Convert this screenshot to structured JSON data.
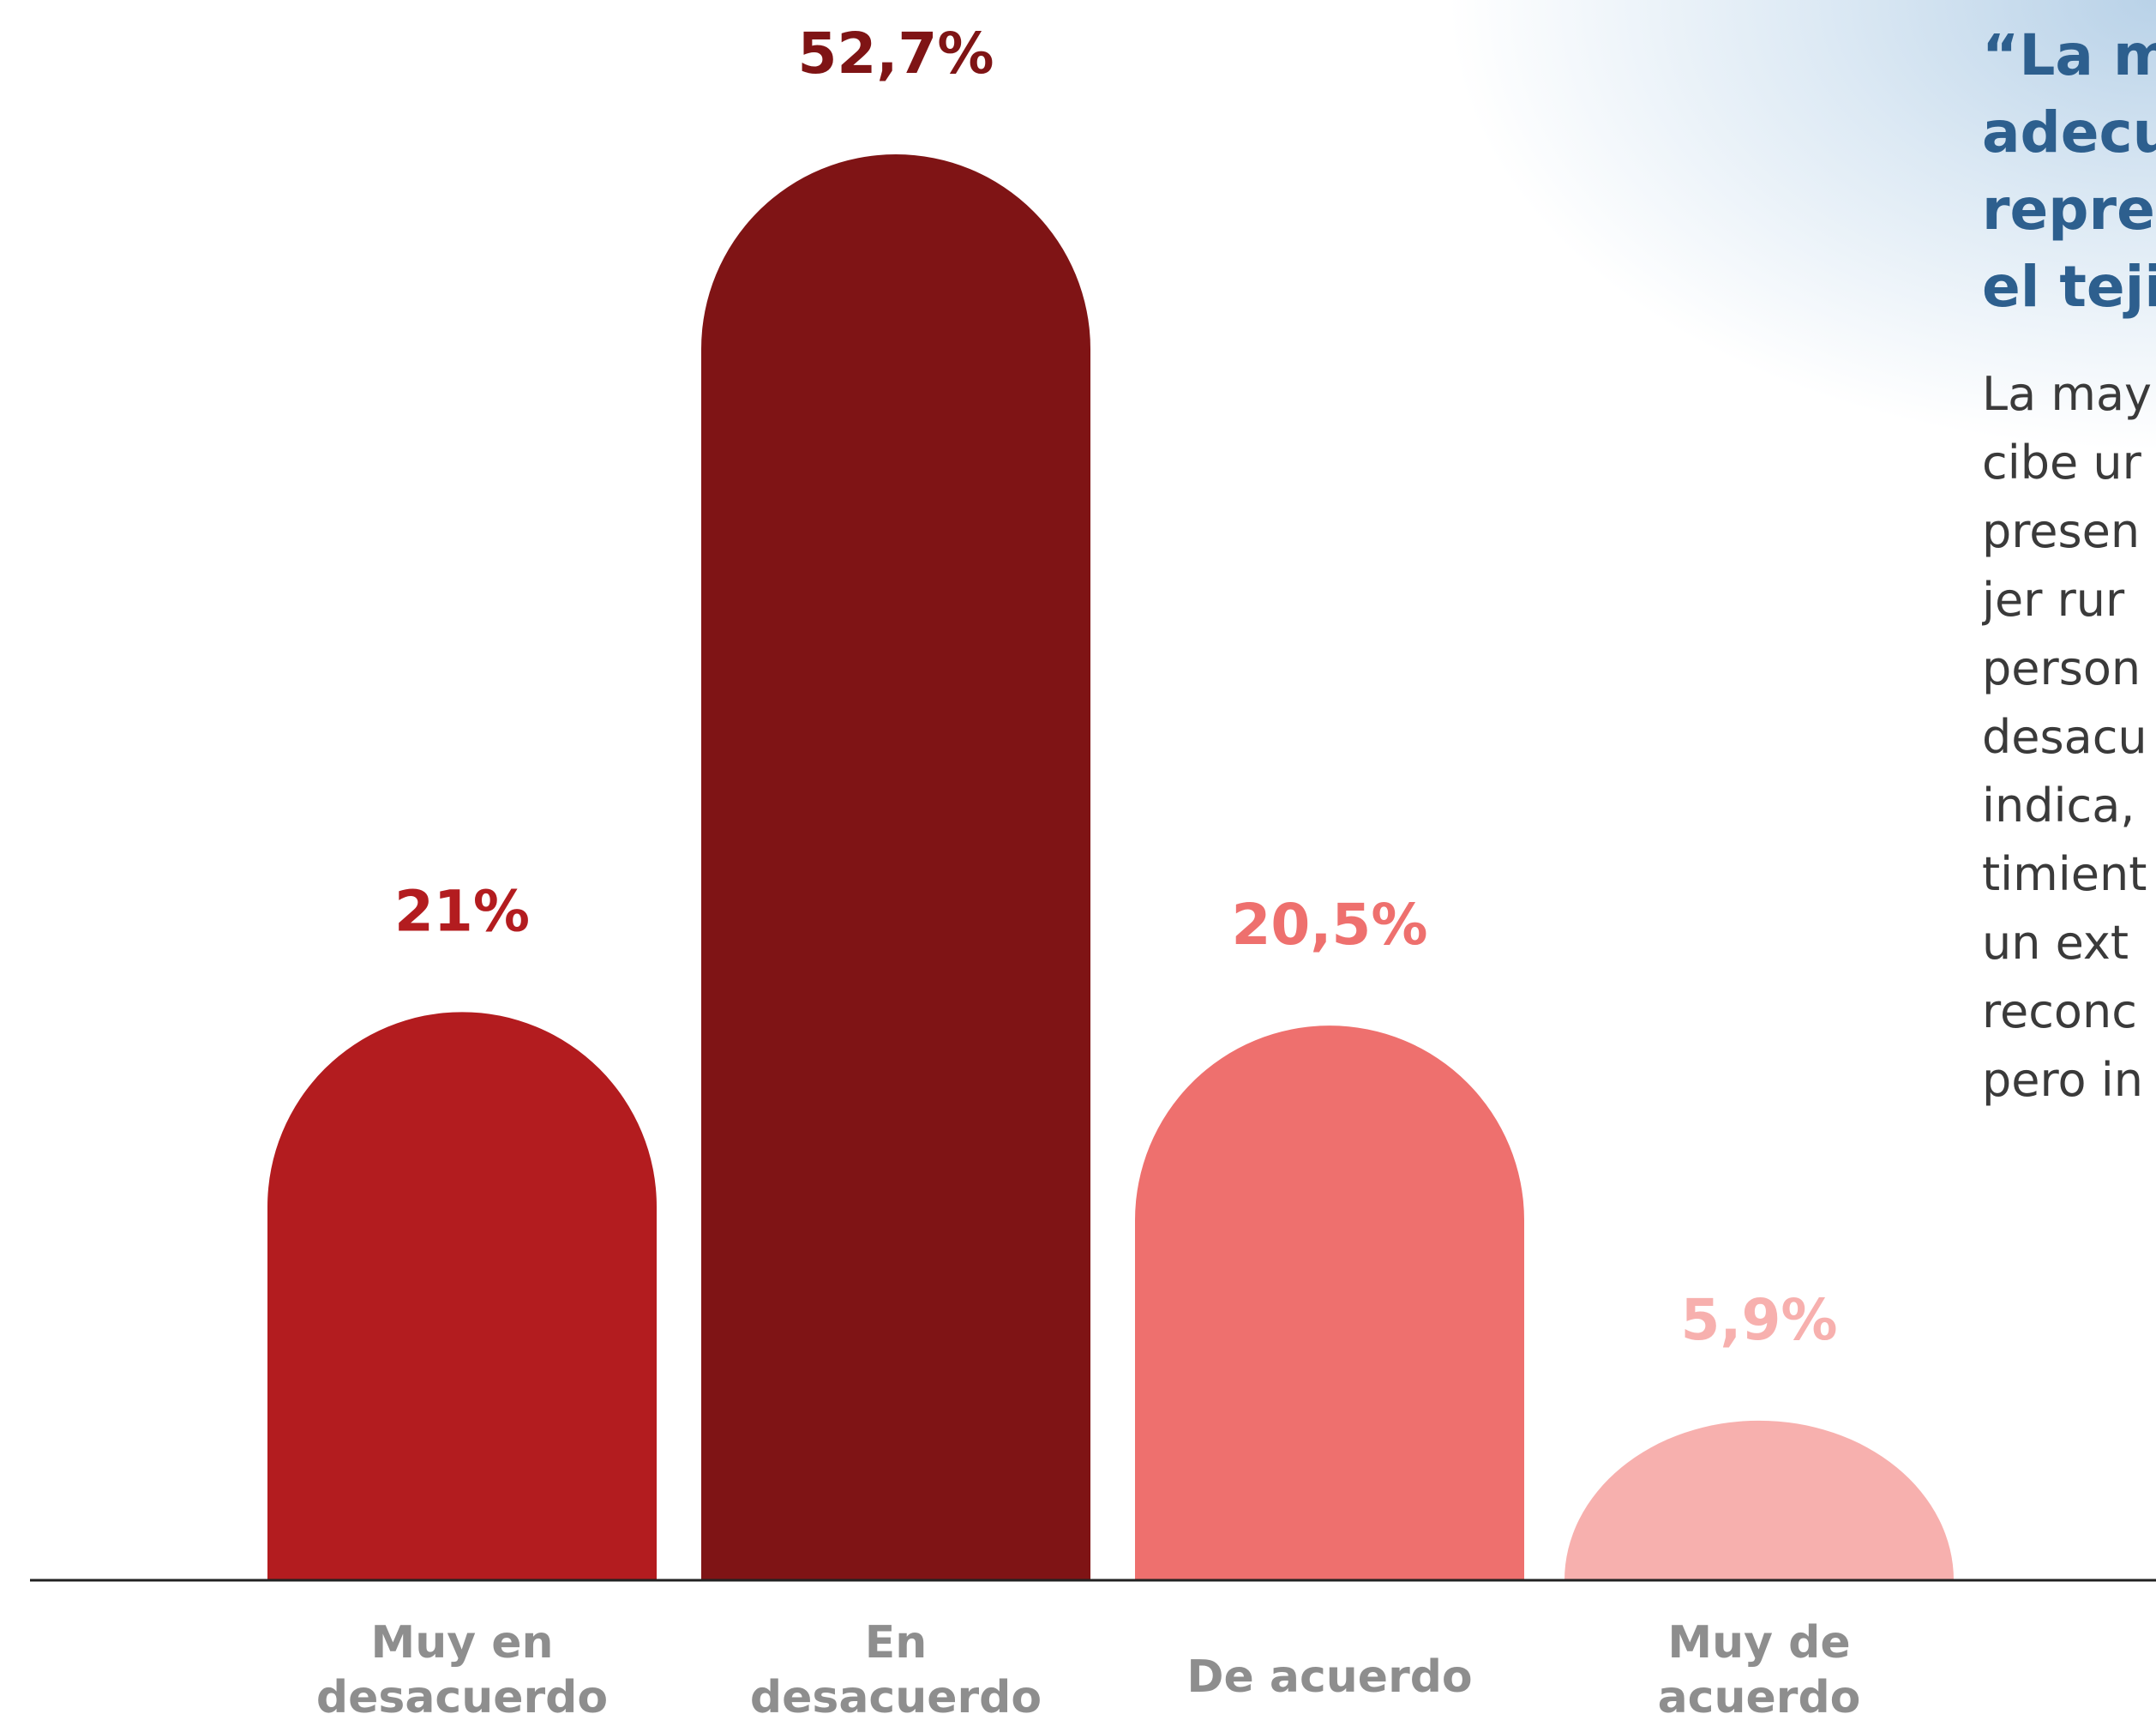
{
  "chart_data": {
    "type": "bar",
    "categories": [
      [
        "Muy en",
        "desacuerdo"
      ],
      [
        "En",
        "desacuerdo"
      ],
      [
        "De acuerdo"
      ],
      [
        "Muy de",
        "acuerdo"
      ]
    ],
    "values": [
      21,
      52.7,
      20.5,
      5.9
    ],
    "value_labels": [
      "21%",
      "52,7%",
      "20,5%",
      "5,9%"
    ],
    "colors": [
      "#b31c1f",
      "#7f1415",
      "#ee706e",
      "#f7b0ae"
    ],
    "title": "",
    "xlabel": "",
    "ylabel": "",
    "ylim": [
      0,
      60
    ],
    "grid": false,
    "legend": "none"
  },
  "side_panel": {
    "heading_lines": [
      "“La m",
      "adecu",
      "repre",
      "el teji"
    ],
    "body_lines": [
      "La may",
      "cibe  ur",
      "presen",
      "jer  rur",
      "person",
      "desacu",
      "indica,",
      "timient",
      "un  ext",
      "reconc",
      "pero in"
    ]
  }
}
